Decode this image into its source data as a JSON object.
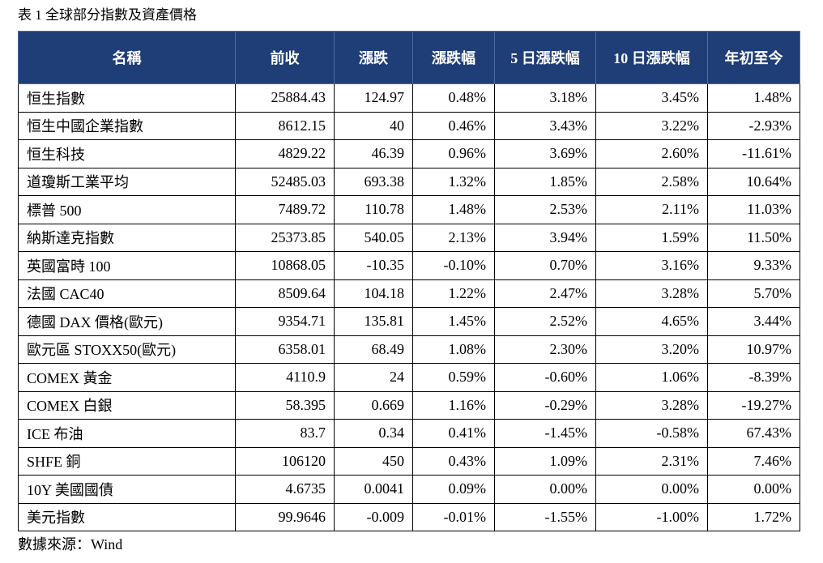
{
  "caption": "表 1 全球部分指數及資產價格",
  "headers": [
    "名稱",
    "前收",
    "漲跌",
    "漲跌幅",
    "5 日漲跌幅",
    "10 日漲跌幅",
    "年初至今"
  ],
  "rows": [
    [
      "恒生指數",
      "25884.43",
      "124.97",
      "0.48%",
      "3.18%",
      "3.45%",
      "1.48%"
    ],
    [
      "恒生中國企業指數",
      "8612.15",
      "40",
      "0.46%",
      "3.43%",
      "3.22%",
      "-2.93%"
    ],
    [
      "恒生科技",
      "4829.22",
      "46.39",
      "0.96%",
      "3.69%",
      "2.60%",
      "-11.61%"
    ],
    [
      "道瓊斯工業平均",
      "52485.03",
      "693.38",
      "1.32%",
      "1.85%",
      "2.58%",
      "10.64%"
    ],
    [
      "標普 500",
      "7489.72",
      "110.78",
      "1.48%",
      "2.53%",
      "2.11%",
      "11.03%"
    ],
    [
      "納斯達克指數",
      "25373.85",
      "540.05",
      "2.13%",
      "3.94%",
      "1.59%",
      "11.50%"
    ],
    [
      "英國富時 100",
      "10868.05",
      "-10.35",
      "-0.10%",
      "0.70%",
      "3.16%",
      "9.33%"
    ],
    [
      "法國 CAC40",
      "8509.64",
      "104.18",
      "1.22%",
      "2.47%",
      "3.28%",
      "5.70%"
    ],
    [
      "德國 DAX 價格(歐元)",
      "9354.71",
      "135.81",
      "1.45%",
      "2.52%",
      "4.65%",
      "3.44%"
    ],
    [
      "歐元區 STOXX50(歐元)",
      "6358.01",
      "68.49",
      "1.08%",
      "2.30%",
      "3.20%",
      "10.97%"
    ],
    [
      "COMEX 黃金",
      "4110.9",
      "24",
      "0.59%",
      "-0.60%",
      "1.06%",
      "-8.39%"
    ],
    [
      "COMEX 白銀",
      "58.395",
      "0.669",
      "1.16%",
      "-0.29%",
      "3.28%",
      "-19.27%"
    ],
    [
      "ICE 布油",
      "83.7",
      "0.34",
      "0.41%",
      "-1.45%",
      "-0.58%",
      "67.43%"
    ],
    [
      "SHFE 銅",
      "106120",
      "450",
      "0.43%",
      "1.09%",
      "2.31%",
      "7.46%"
    ],
    [
      "10Y 美國國債",
      "4.6735",
      "0.0041",
      "0.09%",
      "0.00%",
      "0.00%",
      "0.00%"
    ],
    [
      "美元指數",
      "99.9646",
      "-0.009",
      "-0.01%",
      "-1.55%",
      "-1.00%",
      "1.72%"
    ]
  ],
  "source": "數據來源：Wind",
  "colors": {
    "header_bg": "#1f3e78",
    "header_text": "#ffffff",
    "border": "#000000"
  }
}
